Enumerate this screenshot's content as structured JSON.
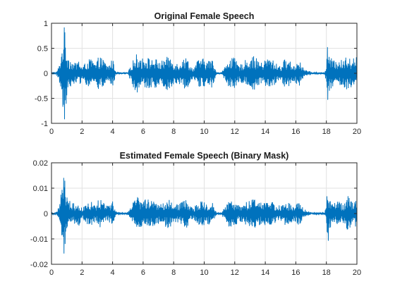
{
  "chart_data": [
    {
      "type": "line",
      "title": "Original Female Speech",
      "xlabel": "",
      "ylabel": "",
      "xlim": [
        0,
        20
      ],
      "ylim": [
        -1,
        1
      ],
      "xticks": [
        0,
        2,
        4,
        6,
        8,
        10,
        12,
        14,
        16,
        18,
        20
      ],
      "yticks": [
        -1,
        -0.5,
        0,
        0.5,
        1
      ],
      "xtick_labels": [
        "0",
        "2",
        "4",
        "6",
        "8",
        "10",
        "12",
        "14",
        "16",
        "18",
        "20"
      ],
      "ytick_labels": [
        "-1",
        "-0.5",
        "0",
        "0.5",
        "1"
      ],
      "grid": true,
      "series_color": "#0072bd",
      "envelope": {
        "description_unit": "approximate signal amplitude envelope vs time (s)",
        "t": [
          0,
          0.3,
          0.5,
          0.7,
          0.8,
          0.9,
          1.0,
          1.2,
          1.5,
          1.8,
          2.0,
          2.3,
          2.6,
          2.9,
          3.1,
          3.4,
          3.7,
          4.0,
          4.2,
          4.4,
          4.6,
          5.0,
          5.3,
          5.6,
          5.9,
          6.2,
          6.5,
          6.8,
          7.1,
          7.4,
          7.7,
          8.0,
          8.3,
          8.6,
          8.9,
          9.1,
          9.3,
          9.6,
          9.9,
          10.2,
          10.5,
          10.8,
          11.1,
          11.4,
          11.7,
          12.0,
          12.3,
          12.6,
          12.9,
          13.2,
          13.5,
          13.8,
          14.1,
          14.4,
          14.7,
          15.0,
          15.3,
          15.6,
          15.9,
          16.2,
          16.5,
          16.8,
          17.1,
          17.4,
          17.7,
          17.9,
          18.0,
          18.1,
          18.2,
          18.5,
          18.8,
          19.1,
          19.4,
          19.7,
          20.0
        ],
        "a": [
          0.02,
          0.02,
          0.15,
          0.55,
          0.95,
          0.9,
          0.45,
          0.3,
          0.2,
          0.28,
          0.12,
          0.25,
          0.3,
          0.18,
          0.35,
          0.28,
          0.15,
          0.3,
          0.05,
          0.02,
          0.02,
          0.02,
          0.25,
          0.4,
          0.3,
          0.35,
          0.28,
          0.3,
          0.22,
          0.3,
          0.35,
          0.25,
          0.2,
          0.3,
          0.32,
          0.15,
          0.1,
          0.28,
          0.3,
          0.25,
          0.3,
          0.02,
          0.02,
          0.15,
          0.35,
          0.3,
          0.15,
          0.25,
          0.3,
          0.35,
          0.28,
          0.2,
          0.32,
          0.3,
          0.2,
          0.15,
          0.3,
          0.25,
          0.15,
          0.3,
          0.1,
          0.05,
          0.02,
          0.02,
          0.02,
          0.02,
          0.2,
          0.65,
          0.35,
          0.25,
          0.3,
          0.25,
          0.4,
          0.3,
          0.35
        ]
      }
    },
    {
      "type": "line",
      "title": "Estimated Female Speech (Binary Mask)",
      "xlabel": "",
      "ylabel": "",
      "xlim": [
        0,
        20
      ],
      "ylim": [
        -0.02,
        0.02
      ],
      "xticks": [
        0,
        2,
        4,
        6,
        8,
        10,
        12,
        14,
        16,
        18,
        20
      ],
      "yticks": [
        -0.02,
        -0.01,
        0,
        0.01,
        0.02
      ],
      "xtick_labels": [
        "0",
        "2",
        "4",
        "6",
        "8",
        "10",
        "12",
        "14",
        "16",
        "18",
        "20"
      ],
      "ytick_labels": [
        "-0.02",
        "-0.01",
        "0",
        "0.01",
        "0.02"
      ],
      "grid": true,
      "series_color": "#0072bd",
      "envelope": {
        "description_unit": "approximate signal amplitude envelope vs time (s)",
        "t": [
          0,
          0.3,
          0.5,
          0.7,
          0.8,
          0.9,
          1.0,
          1.2,
          1.5,
          1.8,
          2.0,
          2.3,
          2.6,
          2.9,
          3.1,
          3.4,
          3.7,
          4.0,
          4.2,
          4.4,
          4.6,
          5.0,
          5.3,
          5.6,
          5.9,
          6.2,
          6.5,
          6.8,
          7.1,
          7.4,
          7.7,
          8.0,
          8.3,
          8.6,
          8.9,
          9.1,
          9.3,
          9.6,
          9.9,
          10.2,
          10.5,
          10.8,
          11.1,
          11.4,
          11.7,
          12.0,
          12.3,
          12.6,
          12.9,
          13.2,
          13.5,
          13.8,
          14.1,
          14.4,
          14.7,
          15.0,
          15.3,
          15.6,
          15.9,
          16.2,
          16.5,
          16.8,
          17.1,
          17.4,
          17.7,
          17.9,
          18.0,
          18.1,
          18.2,
          18.5,
          18.8,
          19.1,
          19.4,
          19.7,
          20.0
        ],
        "a": [
          0.0003,
          0.0003,
          0.003,
          0.011,
          0.016,
          0.015,
          0.008,
          0.005,
          0.004,
          0.005,
          0.002,
          0.004,
          0.005,
          0.003,
          0.006,
          0.005,
          0.003,
          0.005,
          0.001,
          0.0003,
          0.0003,
          0.0003,
          0.004,
          0.007,
          0.005,
          0.006,
          0.005,
          0.005,
          0.004,
          0.005,
          0.006,
          0.004,
          0.004,
          0.005,
          0.006,
          0.003,
          0.002,
          0.005,
          0.005,
          0.004,
          0.005,
          0.0003,
          0.0003,
          0.003,
          0.006,
          0.005,
          0.003,
          0.004,
          0.005,
          0.006,
          0.005,
          0.004,
          0.006,
          0.005,
          0.004,
          0.003,
          0.005,
          0.004,
          0.003,
          0.005,
          0.002,
          0.001,
          0.0003,
          0.0003,
          0.0003,
          0.0003,
          0.004,
          0.013,
          0.006,
          0.004,
          0.005,
          0.004,
          0.007,
          0.005,
          0.006
        ]
      }
    }
  ]
}
